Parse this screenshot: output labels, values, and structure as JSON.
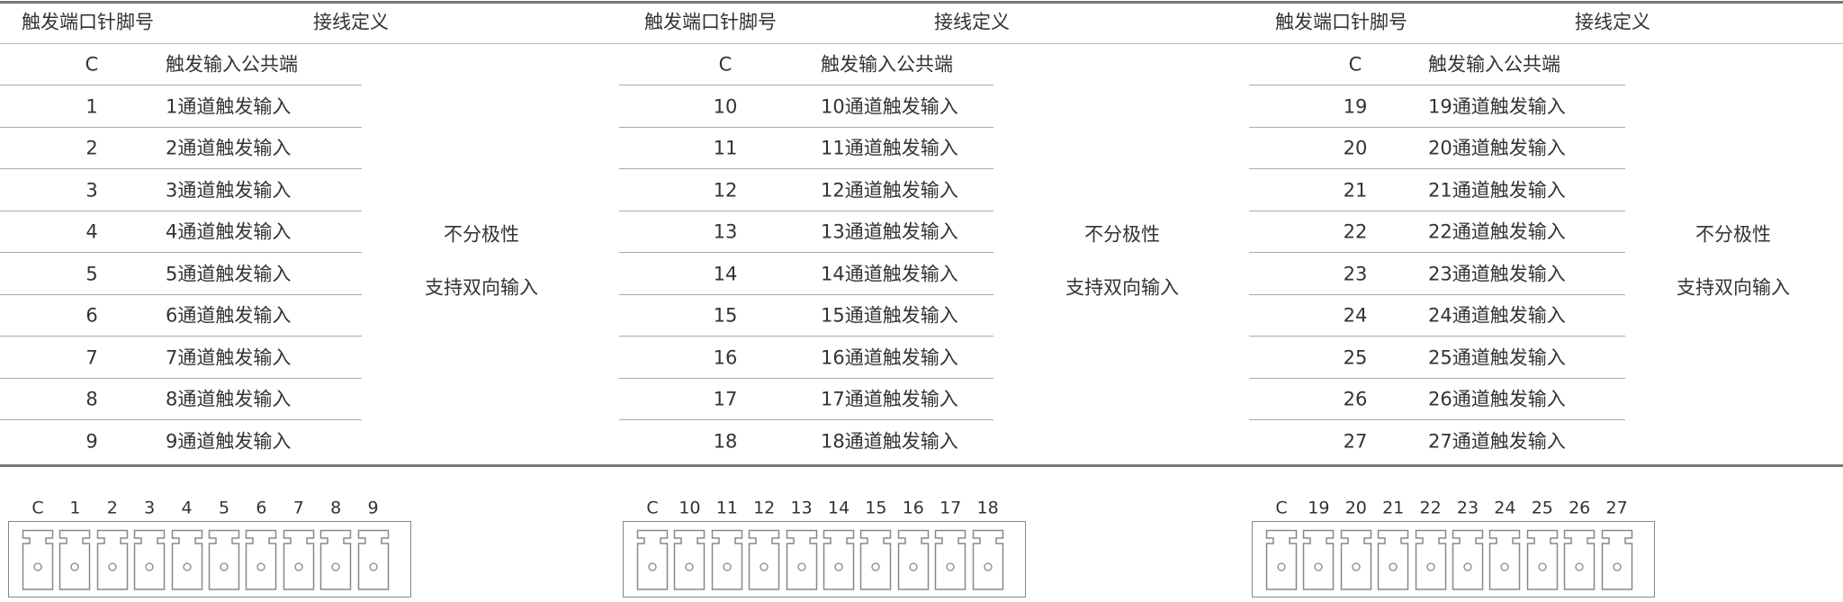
{
  "header": {
    "pin_col": "触发端口针脚号",
    "def_col": "接线定义"
  },
  "tables": [
    {
      "rows": [
        {
          "pin": "C",
          "def": "触发输入公共端"
        },
        {
          "pin": "1",
          "def": "1通道触发输入"
        },
        {
          "pin": "2",
          "def": "2通道触发输入"
        },
        {
          "pin": "3",
          "def": "3通道触发输入"
        },
        {
          "pin": "4",
          "def": "4通道触发输入"
        },
        {
          "pin": "5",
          "def": "5通道触发输入"
        },
        {
          "pin": "6",
          "def": "6通道触发输入"
        },
        {
          "pin": "7",
          "def": "7通道触发输入"
        },
        {
          "pin": "8",
          "def": "8通道触发输入"
        },
        {
          "pin": "9",
          "def": "9通道触发输入"
        }
      ],
      "note": [
        "不分极性",
        "支持双向输入"
      ]
    },
    {
      "rows": [
        {
          "pin": "C",
          "def": "触发输入公共端"
        },
        {
          "pin": "10",
          "def": "10通道触发输入"
        },
        {
          "pin": "11",
          "def": "11通道触发输入"
        },
        {
          "pin": "12",
          "def": "12通道触发输入"
        },
        {
          "pin": "13",
          "def": "13通道触发输入"
        },
        {
          "pin": "14",
          "def": "14通道触发输入"
        },
        {
          "pin": "15",
          "def": "15通道触发输入"
        },
        {
          "pin": "16",
          "def": "16通道触发输入"
        },
        {
          "pin": "17",
          "def": "17通道触发输入"
        },
        {
          "pin": "18",
          "def": "18通道触发输入"
        }
      ],
      "note": [
        "不分极性",
        "支持双向输入"
      ]
    },
    {
      "rows": [
        {
          "pin": "C",
          "def": "触发输入公共端"
        },
        {
          "pin": "19",
          "def": "19通道触发输入"
        },
        {
          "pin": "20",
          "def": "20通道触发输入"
        },
        {
          "pin": "21",
          "def": "21通道触发输入"
        },
        {
          "pin": "22",
          "def": "22通道触发输入"
        },
        {
          "pin": "23",
          "def": "23通道触发输入"
        },
        {
          "pin": "24",
          "def": "24通道触发输入"
        },
        {
          "pin": "25",
          "def": "25通道触发输入"
        },
        {
          "pin": "26",
          "def": "26通道触发输入"
        },
        {
          "pin": "27",
          "def": "27通道触发输入"
        }
      ],
      "note": [
        "不分极性",
        "支持双向输入"
      ]
    }
  ],
  "connectors": [
    {
      "pins": [
        "C",
        "1",
        "2",
        "3",
        "4",
        "5",
        "6",
        "7",
        "8",
        "9"
      ]
    },
    {
      "pins": [
        "C",
        "10",
        "11",
        "12",
        "13",
        "14",
        "15",
        "16",
        "17",
        "18"
      ]
    },
    {
      "pins": [
        "C",
        "19",
        "20",
        "21",
        "22",
        "23",
        "24",
        "25",
        "26",
        "27"
      ]
    }
  ]
}
